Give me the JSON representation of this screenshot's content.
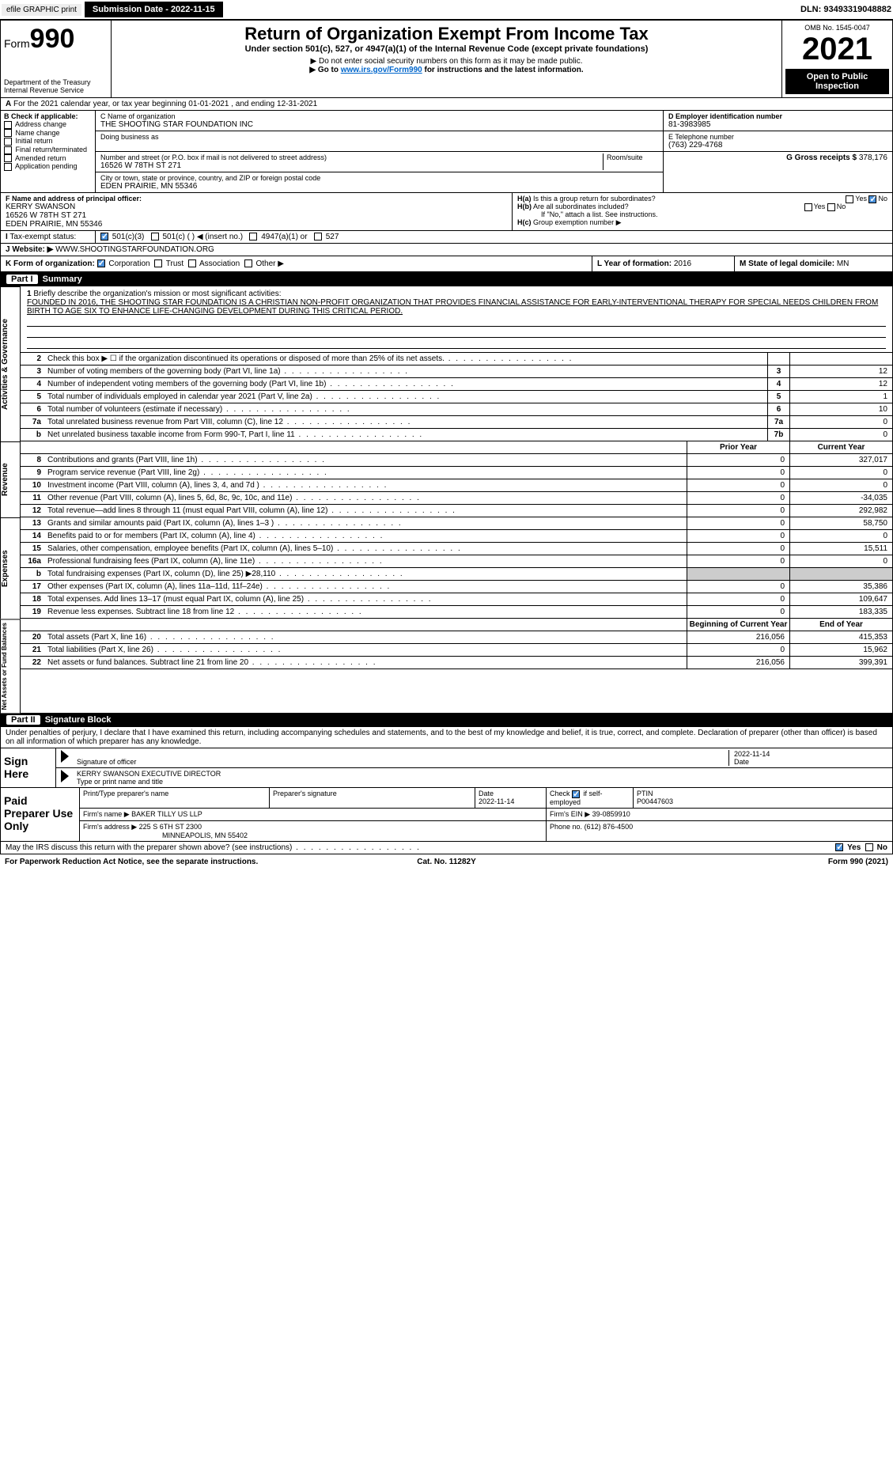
{
  "topbar": {
    "efile": "efile GRAPHIC print",
    "submission": "Submission Date - 2022-11-15",
    "dln": "DLN: 93493319048882"
  },
  "header": {
    "form_prefix": "Form",
    "form_num": "990",
    "dept": "Department of the Treasury",
    "irs": "Internal Revenue Service",
    "title": "Return of Organization Exempt From Income Tax",
    "subtitle": "Under section 501(c), 527, or 4947(a)(1) of the Internal Revenue Code (except private foundations)",
    "note1": "▶ Do not enter social security numbers on this form as it may be made public.",
    "note2_pre": "▶ Go to ",
    "note2_link": "www.irs.gov/Form990",
    "note2_post": " for instructions and the latest information.",
    "omb": "OMB No. 1545-0047",
    "year": "2021",
    "pub": "Open to Public Inspection"
  },
  "row_a": "For the 2021 calendar year, or tax year beginning 01-01-2021    , and ending 12-31-2021",
  "check_b": {
    "hdr": "B Check if applicable:",
    "items": [
      "Address change",
      "Name change",
      "Initial return",
      "Final return/terminated",
      "Amended return",
      "Application pending"
    ]
  },
  "org": {
    "c_label": "C Name of organization",
    "name": "THE SHOOTING STAR FOUNDATION INC",
    "dba": "Doing business as",
    "addr_label": "Number and street (or P.O. box if mail is not delivered to street address)",
    "room": "Room/suite",
    "addr": "16526 W 78TH ST 271",
    "city_label": "City or town, state or province, country, and ZIP or foreign postal code",
    "city": "EDEN PRAIRIE, MN  55346",
    "d_label": "D Employer identification number",
    "ein": "81-3983985",
    "e_label": "E Telephone number",
    "phone": "(763) 229-4768",
    "g_label": "G Gross receipts $",
    "gross": "378,176"
  },
  "officer": {
    "f_label": "F  Name and address of principal officer:",
    "name": "KERRY SWANSON",
    "addr1": "16526 W 78TH ST 271",
    "addr2": "EDEN PRAIRIE, MN  55346"
  },
  "h": {
    "ha": "Is this a group return for subordinates?",
    "hb": "Are all subordinates included?",
    "hb2": "If \"No,\" attach a list. See instructions.",
    "hc": "Group exemption number ▶"
  },
  "tax_exempt": {
    "i_label": "Tax-exempt status:",
    "opt1": "501(c)(3)",
    "opt2": "501(c) (   ) ◀ (insert no.)",
    "opt3": "4947(a)(1) or",
    "opt4": "527"
  },
  "website": {
    "j_label": "Website: ▶",
    "url": "WWW.SHOOTINGSTARFOUNDATION.ORG"
  },
  "k": {
    "label": "K Form of organization:",
    "opts": [
      "Corporation",
      "Trust",
      "Association",
      "Other ▶"
    ]
  },
  "l": {
    "label": "L Year of formation:",
    "val": "2016"
  },
  "m": {
    "label": "M State of legal domicile:",
    "val": "MN"
  },
  "part1": {
    "hdr": "Part I",
    "title": "Summary"
  },
  "mission": {
    "num": "1",
    "label": "Briefly describe the organization's mission or most significant activities:",
    "text": "FOUNDED IN 2016, THE SHOOTING STAR FOUNDATION IS A CHRISTIAN NON-PROFIT ORGANIZATION THAT PROVIDES FINANCIAL ASSISTANCE FOR EARLY-INTERVENTIONAL THERAPY FOR SPECIAL NEEDS CHILDREN FROM BIRTH TO AGE SIX TO ENHANCE LIFE-CHANGING DEVELOPMENT DURING THIS CRITICAL PERIOD."
  },
  "side_labels": {
    "gov": "Activities & Governance",
    "rev": "Revenue",
    "exp": "Expenses",
    "net": "Net Assets or Fund Balances"
  },
  "gov_rows": [
    {
      "n": "2",
      "t": "Check this box ▶ ☐ if the organization discontinued its operations or disposed of more than 25% of its net assets.",
      "b": "",
      "v": ""
    },
    {
      "n": "3",
      "t": "Number of voting members of the governing body (Part VI, line 1a)",
      "b": "3",
      "v": "12"
    },
    {
      "n": "4",
      "t": "Number of independent voting members of the governing body (Part VI, line 1b)",
      "b": "4",
      "v": "12"
    },
    {
      "n": "5",
      "t": "Total number of individuals employed in calendar year 2021 (Part V, line 2a)",
      "b": "5",
      "v": "1"
    },
    {
      "n": "6",
      "t": "Total number of volunteers (estimate if necessary)",
      "b": "6",
      "v": "10"
    },
    {
      "n": "7a",
      "t": "Total unrelated business revenue from Part VIII, column (C), line 12",
      "b": "7a",
      "v": "0"
    },
    {
      "n": "b",
      "t": "Net unrelated business taxable income from Form 990-T, Part I, line 11",
      "b": "7b",
      "v": "0"
    }
  ],
  "col_hdrs": {
    "prior": "Prior Year",
    "current": "Current Year"
  },
  "rev_rows": [
    {
      "n": "8",
      "t": "Contributions and grants (Part VIII, line 1h)",
      "p": "0",
      "c": "327,017"
    },
    {
      "n": "9",
      "t": "Program service revenue (Part VIII, line 2g)",
      "p": "0",
      "c": "0"
    },
    {
      "n": "10",
      "t": "Investment income (Part VIII, column (A), lines 3, 4, and 7d )",
      "p": "0",
      "c": "0"
    },
    {
      "n": "11",
      "t": "Other revenue (Part VIII, column (A), lines 5, 6d, 8c, 9c, 10c, and 11e)",
      "p": "0",
      "c": "-34,035"
    },
    {
      "n": "12",
      "t": "Total revenue—add lines 8 through 11 (must equal Part VIII, column (A), line 12)",
      "p": "0",
      "c": "292,982"
    }
  ],
  "exp_rows": [
    {
      "n": "13",
      "t": "Grants and similar amounts paid (Part IX, column (A), lines 1–3 )",
      "p": "0",
      "c": "58,750"
    },
    {
      "n": "14",
      "t": "Benefits paid to or for members (Part IX, column (A), line 4)",
      "p": "0",
      "c": "0"
    },
    {
      "n": "15",
      "t": "Salaries, other compensation, employee benefits (Part IX, column (A), lines 5–10)",
      "p": "0",
      "c": "15,511"
    },
    {
      "n": "16a",
      "t": "Professional fundraising fees (Part IX, column (A), line 11e)",
      "p": "0",
      "c": "0"
    },
    {
      "n": "b",
      "t": "Total fundraising expenses (Part IX, column (D), line 25) ▶28,110",
      "p": "shade",
      "c": "shade"
    },
    {
      "n": "17",
      "t": "Other expenses (Part IX, column (A), lines 11a–11d, 11f–24e)",
      "p": "0",
      "c": "35,386"
    },
    {
      "n": "18",
      "t": "Total expenses. Add lines 13–17 (must equal Part IX, column (A), line 25)",
      "p": "0",
      "c": "109,647"
    },
    {
      "n": "19",
      "t": "Revenue less expenses. Subtract line 18 from line 12",
      "p": "0",
      "c": "183,335"
    }
  ],
  "net_hdrs": {
    "begin": "Beginning of Current Year",
    "end": "End of Year"
  },
  "net_rows": [
    {
      "n": "20",
      "t": "Total assets (Part X, line 16)",
      "p": "216,056",
      "c": "415,353"
    },
    {
      "n": "21",
      "t": "Total liabilities (Part X, line 26)",
      "p": "0",
      "c": "15,962"
    },
    {
      "n": "22",
      "t": "Net assets or fund balances. Subtract line 21 from line 20",
      "p": "216,056",
      "c": "399,391"
    }
  ],
  "part2": {
    "hdr": "Part II",
    "title": "Signature Block"
  },
  "sig_decl": "Under penalties of perjury, I declare that I have examined this return, including accompanying schedules and statements, and to the best of my knowledge and belief, it is true, correct, and complete. Declaration of preparer (other than officer) is based on all information of which preparer has any knowledge.",
  "sign": {
    "here": "Sign Here",
    "sig_label": "Signature of officer",
    "date": "2022-11-14",
    "date_label": "Date",
    "name": "KERRY SWANSON  EXECUTIVE DIRECTOR",
    "name_label": "Type or print name and title"
  },
  "prep": {
    "title": "Paid Preparer Use Only",
    "h1": "Print/Type preparer's name",
    "h2": "Preparer's signature",
    "h3": "Date",
    "date": "2022-11-14",
    "h4": "Check ☑ if self-employed",
    "h5": "PTIN",
    "ptin": "P00447603",
    "firm_label": "Firm's name    ▶",
    "firm": "BAKER TILLY US LLP",
    "ein_label": "Firm's EIN ▶",
    "ein": "39-0859910",
    "addr_label": "Firm's address ▶",
    "addr1": "225 S 6TH ST 2300",
    "addr2": "MINNEAPOLIS, MN  55402",
    "phone_label": "Phone no.",
    "phone": "(612) 876-4500"
  },
  "discuss": "May the IRS discuss this return with the preparer shown above? (see instructions)",
  "footer": {
    "left": "For Paperwork Reduction Act Notice, see the separate instructions.",
    "mid": "Cat. No. 11282Y",
    "right": "Form 990 (2021)"
  }
}
